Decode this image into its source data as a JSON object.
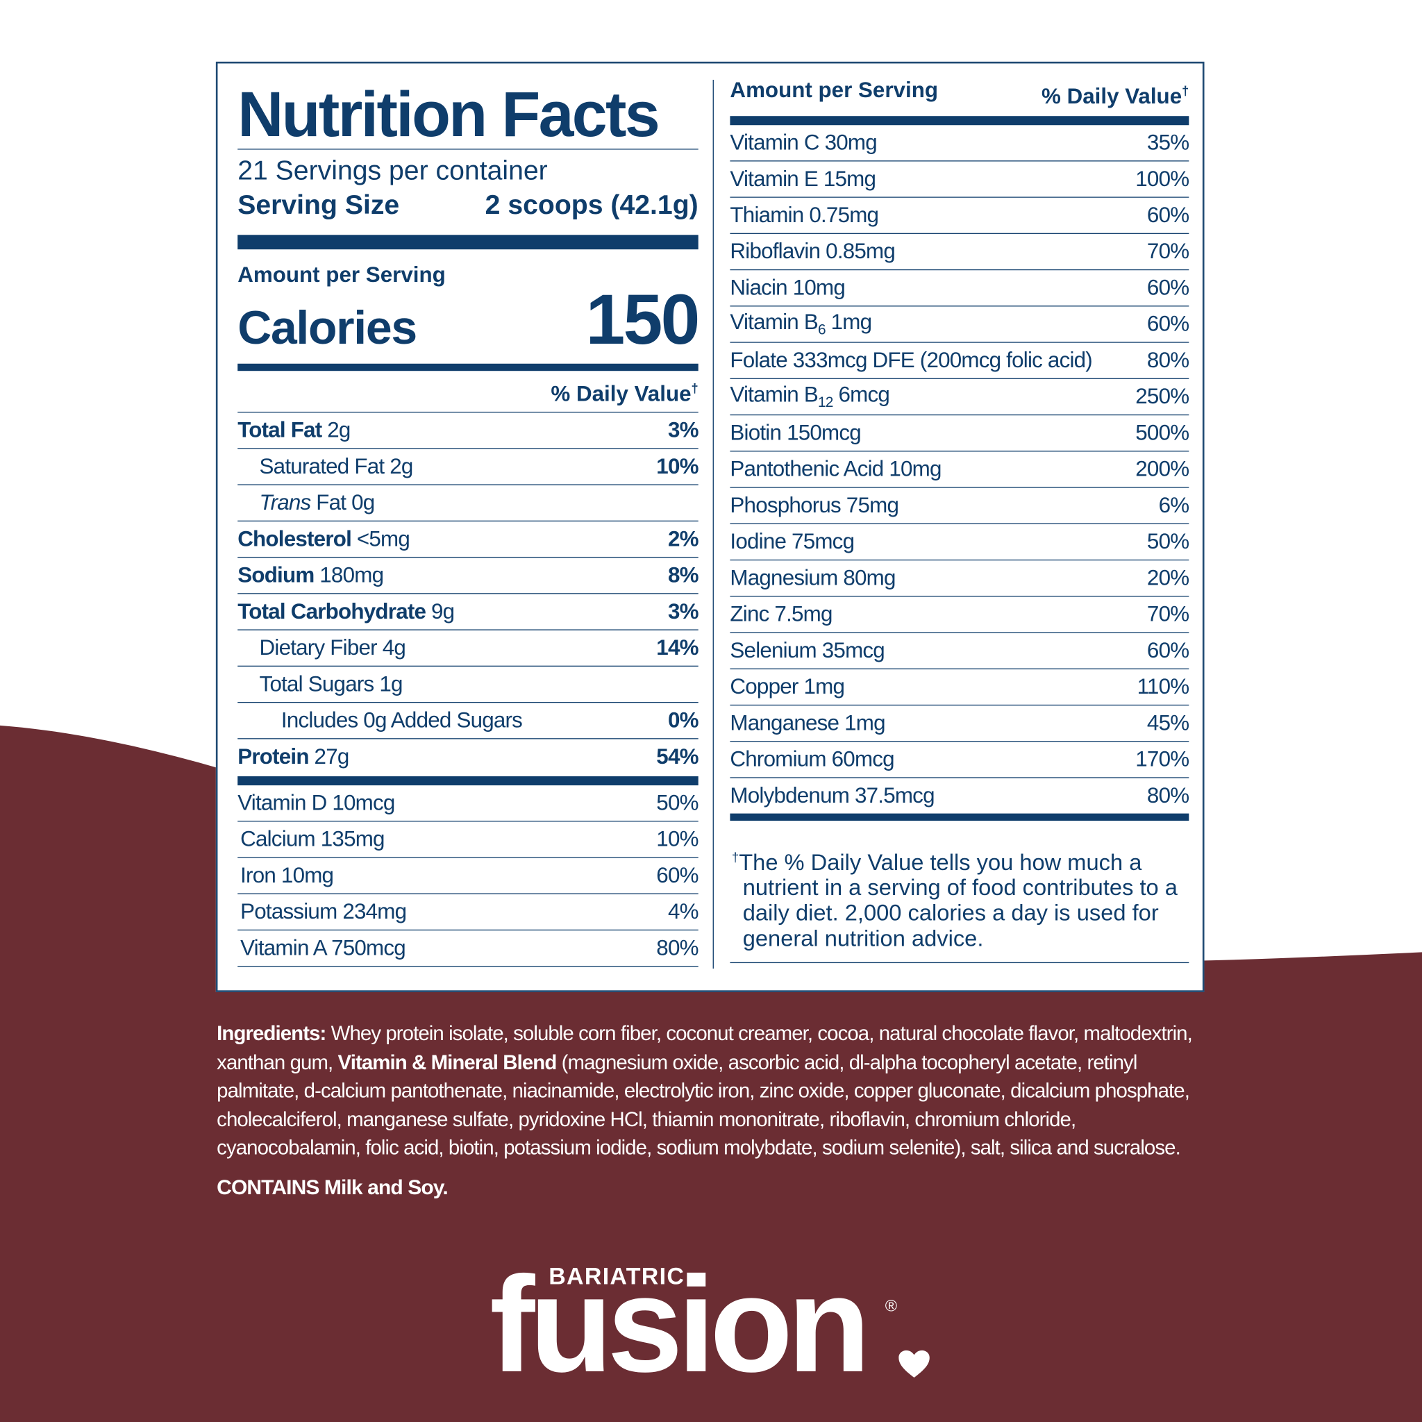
{
  "left": {
    "title": "Nutrition Facts",
    "servings": "21 Servings per container",
    "serving_size_label": "Serving Size",
    "serving_size": "2 scoops (42.1g)",
    "amount_per_serving": "Amount per Serving",
    "calories_label": "Calories",
    "calories": "150",
    "dv_header": "% Daily Value",
    "dagger": "†",
    "nutrients": [
      {
        "name": "Total Fat",
        "amount": "2g",
        "dv": "3%",
        "sub": [
          {
            "label": "Saturated Fat 2g",
            "dv": "10%"
          },
          {
            "label_italic": "Trans",
            "label": "Fat 0g"
          }
        ]
      },
      {
        "name": "Cholesterol",
        "amount": "<5mg",
        "dv": "2%"
      },
      {
        "name": "Sodium",
        "amount": "180mg",
        "dv": "8%"
      },
      {
        "name": "Total Carbohydrate",
        "amount": "9g",
        "dv": "3%",
        "sub": [
          {
            "label": "Dietary Fiber 4g",
            "dv": "14%"
          },
          {
            "label": "Total Sugars 1g",
            "sub": [
              {
                "label": "Includes 0g Added Sugars",
                "dv": "0%"
              }
            ]
          }
        ]
      },
      {
        "name": "Protein",
        "amount": "27g",
        "dv": "54%"
      }
    ],
    "micronutrients": [
      {
        "label": "Vitamin D 10mcg",
        "dv": "50%"
      },
      {
        "label": "Calcium 135mg",
        "dv": "10%"
      },
      {
        "label": "Iron 10mg",
        "dv": "60%"
      },
      {
        "label": "Potassium 234mg",
        "dv": "4%"
      },
      {
        "label": "Vitamin A 750mcg",
        "dv": "80%"
      }
    ]
  },
  "right": {
    "amount_per_serving": "Amount per Serving",
    "dv_header": "% Daily Value",
    "dagger": "†",
    "rows": [
      {
        "label": "Vitamin C 30mg",
        "dv": "35%"
      },
      {
        "label": "Vitamin E 15mg",
        "dv": "100%"
      },
      {
        "label": "Thiamin 0.75mg",
        "dv": "60%"
      },
      {
        "label": "Riboflavin 0.85mg",
        "dv": "70%"
      },
      {
        "label": "Niacin 10mg",
        "dv": "60%"
      },
      {
        "label": "Vitamin B",
        "subscript": "6",
        "label_after": "1mg",
        "dv": "60%"
      },
      {
        "label": "Folate 333mcg DFE (200mcg folic acid)",
        "dv": "80%"
      },
      {
        "label": "Vitamin B",
        "subscript": "12",
        "label_after": "6mcg",
        "dv": "250%"
      },
      {
        "label": "Biotin 150mcg",
        "dv": "500%"
      },
      {
        "label": "Pantothenic Acid 10mg",
        "dv": "200%"
      },
      {
        "label": "Phosphorus 75mg",
        "dv": "6%"
      },
      {
        "label": "Iodine 75mcg",
        "dv": "50%"
      },
      {
        "label": "Magnesium 80mg",
        "dv": "20%"
      },
      {
        "label": "Zinc 7.5mg",
        "dv": "70%"
      },
      {
        "label": "Selenium 35mcg",
        "dv": "60%"
      },
      {
        "label": "Copper 1mg",
        "dv": "110%"
      },
      {
        "label": "Manganese 1mg",
        "dv": "45%"
      },
      {
        "label": "Chromium 60mcg",
        "dv": "170%"
      },
      {
        "label": "Molybdenum 37.5mcg",
        "dv": "80%"
      }
    ],
    "footnote": "The % Daily Value tells you how much a nutrient in a serving of food contributes to a daily diet. 2,000 calories a day is used for general nutrition advice."
  },
  "ingredients": {
    "label": "Ingredients:",
    "text_1": "Whey protein isolate, soluble corn fiber, coconut creamer, cocoa, natural chocolate flavor, maltodextrin, xanthan gum,",
    "blend_label": "Vitamin & Mineral Blend",
    "text_2": "(magnesium oxide, ascorbic acid, dl-alpha tocopheryl acetate, retinyl palmitate, d-calcium pantothenate, niacinamide, electrolytic iron, zinc oxide, copper gluconate, dicalcium phosphate, cholecalciferol, manganese sulfate, pyridoxine HCl, thiamin mononitrate, riboflavin, chromium chloride, cyanocobalamin, folic acid, biotin, potassium iodide, sodium molybdate, sodium selenite), salt, silica and sucralose.",
    "contains": "CONTAINS Milk and Soy."
  },
  "brand": {
    "line": "BARIATRIC",
    "name": "fusion",
    "registered": "®"
  }
}
